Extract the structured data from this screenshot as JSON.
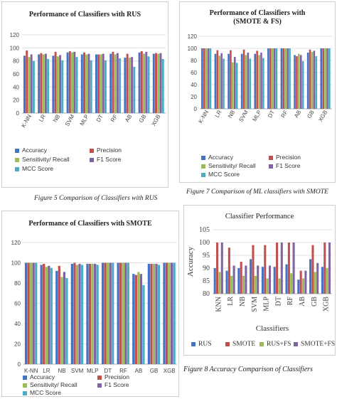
{
  "captions": {
    "c1": "Figure 5 Comparison of Classifiers with RUS",
    "c2": "Figure 7 Comparison of ML classifiers with SMOTE",
    "c4": "Figure 8 Accuracy Comparison of Classifiers"
  },
  "palette": {
    "Accuracy": "#4472c4",
    "Precision": "#c0504d",
    "Sensitivity/ Recall": "#9bbb59",
    "F1 Score": "#8064a2",
    "MCC Score": "#4bacc6",
    "RUS": "#4472c4",
    "SMOTE": "#c0504d",
    "RUS+FS": "#9bbb59",
    "SMOTE+FS": "#8064a2"
  },
  "chart_data": [
    {
      "type": "bar",
      "title": "Performance of Classifiers with RUS",
      "categories": [
        "K-NN",
        "LR",
        "NB",
        "SVM",
        "MLP",
        "DT",
        "RF",
        "AB",
        "GB",
        "XGB"
      ],
      "ylim": [
        0,
        120
      ],
      "yticks": [
        0,
        20,
        40,
        60,
        80,
        100,
        120
      ],
      "grid": true,
      "legend": "bottom",
      "series": [
        {
          "name": "Accuracy",
          "values": [
            88,
            90,
            88,
            93,
            90,
            90,
            91,
            85,
            93,
            91
          ]
        },
        {
          "name": "Precision",
          "values": [
            96,
            92,
            94,
            95,
            93,
            90,
            94,
            91,
            95,
            92
          ]
        },
        {
          "name": "Sensitivity/ Recall",
          "values": [
            86,
            90,
            87,
            93,
            90,
            90,
            90,
            85,
            91,
            91
          ]
        },
        {
          "name": "F1 Score",
          "values": [
            90,
            91,
            89,
            94,
            91,
            91,
            92,
            86,
            94,
            92
          ]
        },
        {
          "name": "MCC Score",
          "values": [
            80,
            83,
            81,
            86,
            81,
            81,
            84,
            71,
            87,
            83
          ]
        }
      ]
    },
    {
      "type": "bar",
      "title": "Performance of Classifiers with (SMOTE & FS)",
      "categories": [
        "K-NN",
        "LR",
        "NB",
        "SVM",
        "MLP",
        "DT",
        "RF",
        "AB",
        "GB",
        "XGB"
      ],
      "ylim": [
        0,
        120
      ],
      "yticks": [
        0,
        20,
        40,
        60,
        80,
        100,
        120
      ],
      "grid": true,
      "legend": "bottom",
      "series": [
        {
          "name": "Accuracy",
          "values": [
            100,
            91,
            91,
            91,
            91,
            100,
            100,
            89,
            93,
            100
          ]
        },
        {
          "name": "Precision",
          "values": [
            100,
            97,
            97,
            98,
            96,
            100,
            100,
            87,
            98,
            100
          ]
        },
        {
          "name": "Sensitivity/ Recall",
          "values": [
            100,
            88,
            77,
            89,
            89,
            100,
            100,
            91,
            94,
            100
          ]
        },
        {
          "name": "F1 Score",
          "values": [
            100,
            92,
            86,
            93,
            93,
            100,
            100,
            89,
            96,
            100
          ]
        },
        {
          "name": "MCC Score",
          "values": [
            100,
            83,
            76,
            83,
            84,
            100,
            100,
            79,
            87,
            100
          ]
        }
      ]
    },
    {
      "type": "bar",
      "title": "Performance of Classifiers with SMOTE",
      "categories": [
        "K-NN",
        "LR",
        "NB",
        "SVM",
        "MLP",
        "DT",
        "RF",
        "AB",
        "GB",
        "XGB"
      ],
      "ylim": [
        0,
        120
      ],
      "yticks": [
        0,
        20,
        40,
        60,
        80,
        100,
        120
      ],
      "grid": true,
      "legend": "bottom",
      "series": [
        {
          "name": "Accuracy",
          "values": [
            100,
            98,
            92,
            99,
            99,
            100,
            100,
            89,
            99,
            100
          ]
        },
        {
          "name": "Precision",
          "values": [
            100,
            99,
            97,
            100,
            99,
            100,
            100,
            88,
            99,
            100
          ]
        },
        {
          "name": "Sensitivity/ Recall",
          "values": [
            100,
            96,
            86,
            98,
            99,
            100,
            100,
            91,
            99,
            100
          ]
        },
        {
          "name": "F1 Score",
          "values": [
            100,
            97,
            91,
            99,
            99,
            100,
            100,
            89,
            99,
            100
          ]
        },
        {
          "name": "MCC Score",
          "values": [
            100,
            95,
            85,
            98,
            98,
            100,
            100,
            78,
            98,
            100
          ]
        }
      ]
    },
    {
      "type": "bar",
      "title": "Classifier Performance",
      "xlabel": "Classifiers",
      "ylabel": "Accuracy",
      "categories": [
        "KNN",
        "LR",
        "NB",
        "SVM",
        "MLP",
        "DT",
        "RF",
        "AB",
        "GB",
        "XGB"
      ],
      "ylim": [
        80,
        105
      ],
      "yticks": [
        80,
        85,
        90,
        95,
        100,
        105
      ],
      "grid": true,
      "legend": "bottom",
      "series": [
        {
          "name": "RUS",
          "values": [
            90,
            89,
            90,
            93.5,
            90.5,
            90.5,
            91.5,
            85.5,
            93.5,
            90.5
          ]
        },
        {
          "name": "SMOTE",
          "values": [
            100,
            98,
            92.5,
            99,
            99,
            100,
            100,
            89,
            99,
            100
          ]
        },
        {
          "name": "RUS+FS",
          "values": [
            88.5,
            87,
            87,
            87,
            86,
            86,
            88,
            86,
            88.5,
            90
          ]
        },
        {
          "name": "SMOTE+FS",
          "values": [
            100,
            91,
            91,
            91,
            91,
            100,
            100,
            89,
            92,
            100
          ]
        }
      ]
    }
  ]
}
